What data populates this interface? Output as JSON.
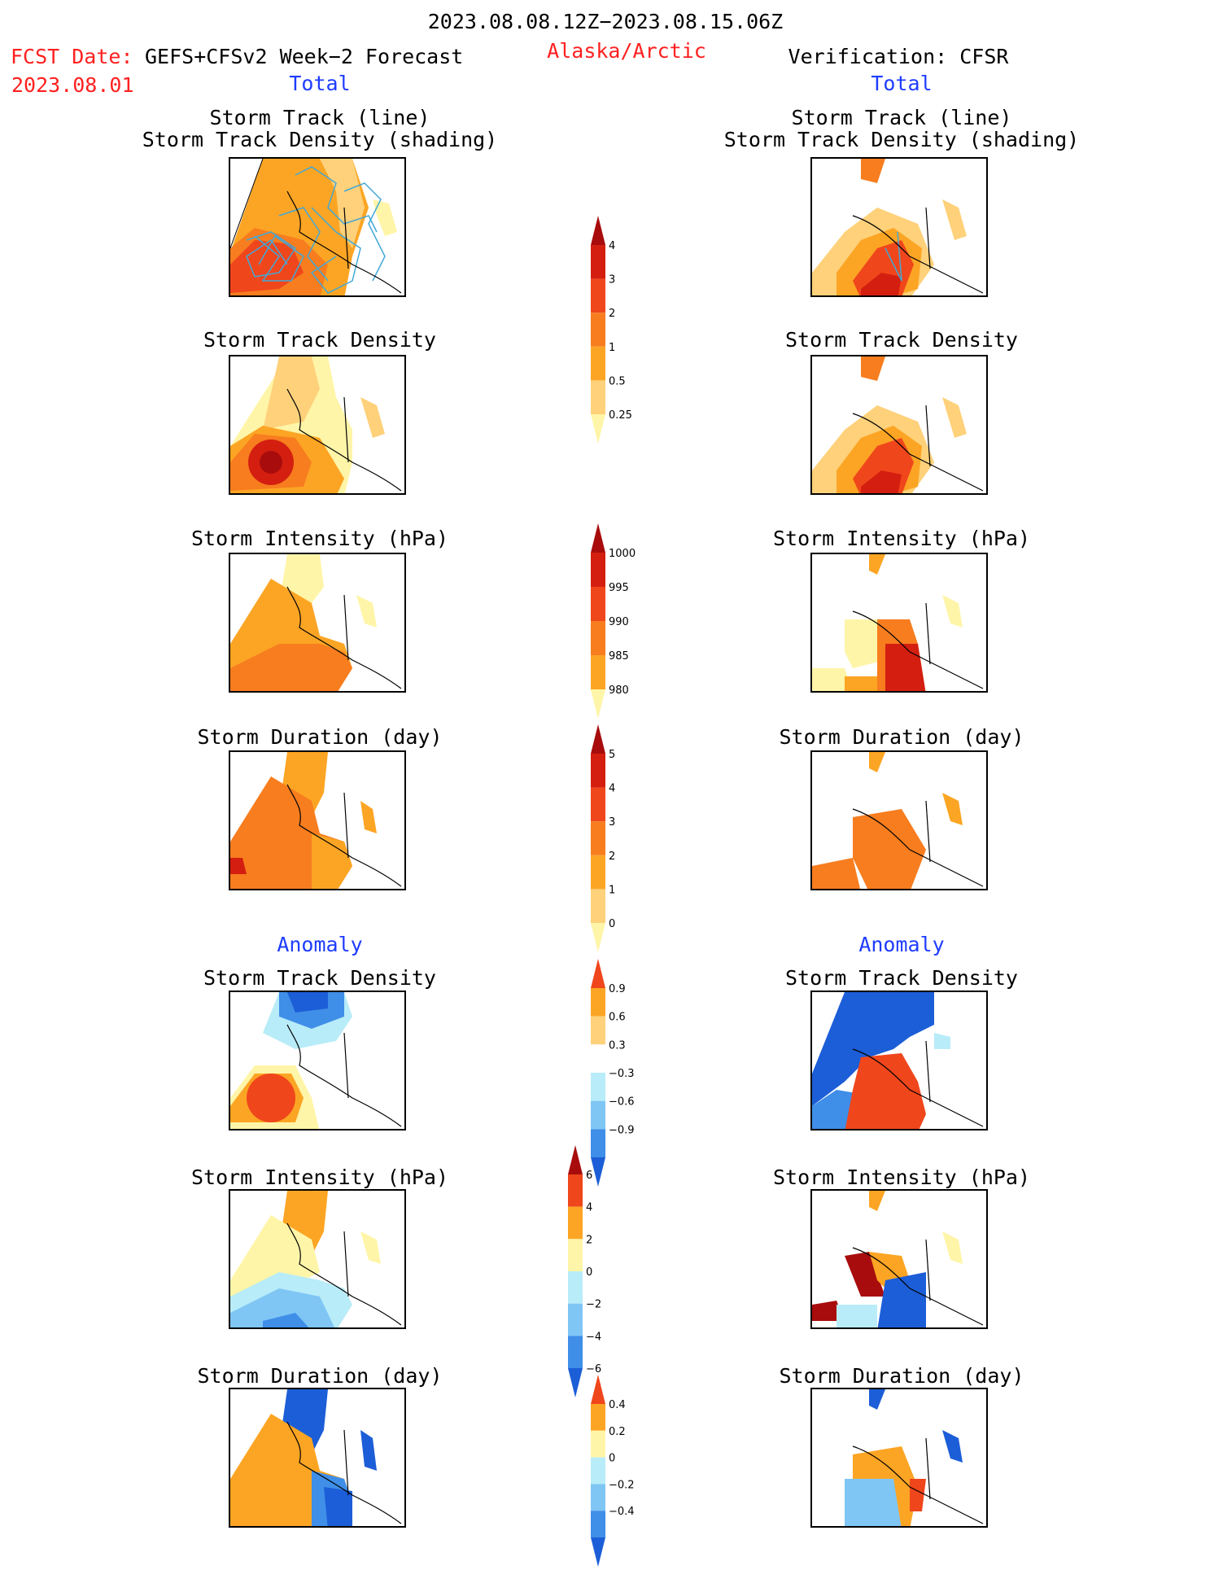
{
  "header": {
    "date_range": "2023.08.08.12Z−2023.08.15.06Z",
    "fcst_date_label": "FCST Date:",
    "model_label": "GEFS+CFSv2 Week−2 Forecast",
    "fcst_date_value": "2023.08.01",
    "region": "Alaska/Arctic",
    "verification": "Verification: CFSR",
    "total_left": "Total",
    "total_right": "Total",
    "anomaly_left": "Anomaly",
    "anomaly_right": "Anomaly"
  },
  "titles": {
    "track_line": "Storm Track (line)\nStorm Track Density (shading)",
    "density": "Storm Track Density",
    "intensity": "Storm Intensity (hPa)",
    "duration": "Storm Duration (day)"
  },
  "colors": {
    "lightyellow": "#fff5a8",
    "paleorange": "#fed17a",
    "orange": "#fca524",
    "darkorange": "#f77d1f",
    "red": "#f0461c",
    "crimson": "#d41f10",
    "darkred": "#a80c0c",
    "lightblue": "#b8ecf8",
    "skyblue": "#7fc6f5",
    "blue": "#3f8ee8",
    "deepblue": "#1c5ed7",
    "track_line": "#42a8d6"
  },
  "chart_data": [
    {
      "type": "heatmap",
      "name": "total-colorbar-density",
      "levels": [
        0.25,
        0.5,
        1,
        2,
        3,
        4
      ],
      "tick_labels": [
        "4",
        "3",
        "2",
        "1",
        "0.5",
        "0.25"
      ],
      "colors": [
        "#fff5a8",
        "#fed17a",
        "#fca524",
        "#f77d1f",
        "#f0461c",
        "#d41f10",
        "#a80c0c"
      ]
    },
    {
      "type": "heatmap",
      "name": "total-colorbar-intensity",
      "levels": [
        1000,
        995,
        990,
        985,
        980
      ],
      "tick_labels": [
        "1000",
        "995",
        "990",
        "985",
        "980"
      ],
      "colors": [
        "#fff5a8",
        "#fca524",
        "#f77d1f",
        "#f0461c",
        "#d41f10",
        "#a80c0c"
      ]
    },
    {
      "type": "heatmap",
      "name": "total-colorbar-duration",
      "levels": [
        0,
        1,
        2,
        3,
        4,
        5
      ],
      "tick_labels": [
        "5",
        "4",
        "3",
        "2",
        "1",
        "0"
      ],
      "colors": [
        "#fff5a8",
        "#fed17a",
        "#fca524",
        "#f77d1f",
        "#f0461c",
        "#d41f10",
        "#a80c0c"
      ]
    },
    {
      "type": "heatmap",
      "name": "anomaly-colorbar-density",
      "levels": [
        -0.9,
        -0.6,
        -0.3,
        0.3,
        0.6,
        0.9
      ],
      "tick_labels": [
        "0.9",
        "0.6",
        "0.3",
        "−0.3",
        "−0.6",
        "−0.9"
      ],
      "colors": [
        "#1c5ed7",
        "#3f8ee8",
        "#7fc6f5",
        "#b8ecf8",
        "#ffffff",
        "#fed17a",
        "#fca524",
        "#f0461c"
      ]
    },
    {
      "type": "heatmap",
      "name": "anomaly-colorbar-intensity",
      "levels": [
        -6,
        -4,
        -2,
        0,
        2,
        4,
        6
      ],
      "tick_labels": [
        "6",
        "4",
        "2",
        "0",
        "−2",
        "−4",
        "−6"
      ],
      "colors": [
        "#1c5ed7",
        "#3f8ee8",
        "#7fc6f5",
        "#b8ecf8",
        "#fff5a8",
        "#fca524",
        "#f0461c",
        "#a80c0c"
      ]
    },
    {
      "type": "heatmap",
      "name": "anomaly-colorbar-duration",
      "levels": [
        -0.4,
        -0.2,
        0,
        0.2,
        0.4
      ],
      "tick_labels": [
        "0.4",
        "0.2",
        "0",
        "−0.2",
        "−0.4"
      ],
      "colors": [
        "#1c5ed7",
        "#3f8ee8",
        "#7fc6f5",
        "#b8ecf8",
        "#fff5a8",
        "#fca524",
        "#f0461c"
      ]
    }
  ]
}
